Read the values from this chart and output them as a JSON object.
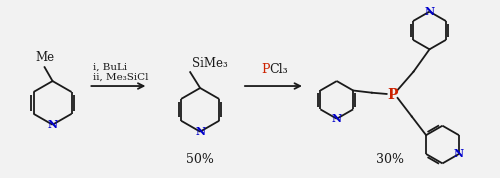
{
  "bg_color": "#f2f2f2",
  "black": "#1a1a1a",
  "blue": "#0000cc",
  "red": "#cc2200",
  "yield1": "50%",
  "yield2": "30%",
  "arrow1_line1": "i, BuLi",
  "arrow1_line2": "ii, Me₃SiCl",
  "Me": "Me",
  "SiMe3": "SiMe₃",
  "N": "N",
  "P": "P",
  "PCl3_P": "P",
  "PCl3_rest": "Cl₃"
}
